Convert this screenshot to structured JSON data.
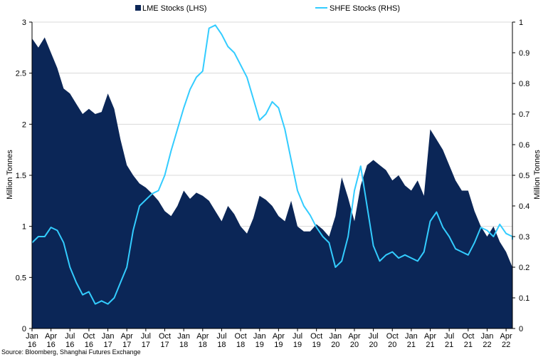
{
  "chart_data": {
    "type": "area",
    "grid": true,
    "legend_position": "top",
    "ylabel_left": "Million Tonnes",
    "ylabel_right": "Million Tonnes",
    "ylim_left": [
      0,
      3
    ],
    "ylim_right": [
      0,
      1
    ],
    "yticks_left": [
      "0",
      "0.5",
      "1",
      "1.5",
      "2",
      "2.5",
      "3"
    ],
    "yticks_right": [
      "0",
      "0.1",
      "0.2",
      "0.3",
      "0.4",
      "0.5",
      "0.6",
      "0.7",
      "0.8",
      "0.9",
      "1"
    ],
    "x_ticks": [
      {
        "month": "Jan",
        "year": "16"
      },
      {
        "month": "Apr",
        "year": "16"
      },
      {
        "month": "Jul",
        "year": "16"
      },
      {
        "month": "Oct",
        "year": "16"
      },
      {
        "month": "Jan",
        "year": "17"
      },
      {
        "month": "Apr",
        "year": "17"
      },
      {
        "month": "Jul",
        "year": "17"
      },
      {
        "month": "Oct",
        "year": "17"
      },
      {
        "month": "Jan",
        "year": "18"
      },
      {
        "month": "Apr",
        "year": "18"
      },
      {
        "month": "Jul",
        "year": "18"
      },
      {
        "month": "Oct",
        "year": "18"
      },
      {
        "month": "Jan",
        "year": "19"
      },
      {
        "month": "Apr",
        "year": "19"
      },
      {
        "month": "Jul",
        "year": "19"
      },
      {
        "month": "Oct",
        "year": "19"
      },
      {
        "month": "Jan",
        "year": "20"
      },
      {
        "month": "Apr",
        "year": "20"
      },
      {
        "month": "Jul",
        "year": "20"
      },
      {
        "month": "Oct",
        "year": "20"
      },
      {
        "month": "Jan",
        "year": "21"
      },
      {
        "month": "Apr",
        "year": "21"
      },
      {
        "month": "Jul",
        "year": "21"
      },
      {
        "month": "Oct",
        "year": "21"
      },
      {
        "month": "Jan",
        "year": "22"
      },
      {
        "month": "Apr",
        "year": "22"
      }
    ],
    "x_range": [
      "2016-01",
      "2022-05"
    ],
    "series": [
      {
        "name": "LME Stocks (LHS)",
        "axis": "left",
        "style": "area",
        "color": "#0b2657",
        "points": [
          [
            "2016-01",
            2.84
          ],
          [
            "2016-02",
            2.75
          ],
          [
            "2016-03",
            2.85
          ],
          [
            "2016-04",
            2.7
          ],
          [
            "2016-05",
            2.55
          ],
          [
            "2016-06",
            2.35
          ],
          [
            "2016-07",
            2.3
          ],
          [
            "2016-08",
            2.2
          ],
          [
            "2016-09",
            2.1
          ],
          [
            "2016-10",
            2.15
          ],
          [
            "2016-11",
            2.1
          ],
          [
            "2016-12",
            2.12
          ],
          [
            "2017-01",
            2.3
          ],
          [
            "2017-02",
            2.15
          ],
          [
            "2017-03",
            1.85
          ],
          [
            "2017-04",
            1.6
          ],
          [
            "2017-05",
            1.5
          ],
          [
            "2017-06",
            1.42
          ],
          [
            "2017-07",
            1.38
          ],
          [
            "2017-08",
            1.32
          ],
          [
            "2017-09",
            1.25
          ],
          [
            "2017-10",
            1.15
          ],
          [
            "2017-11",
            1.1
          ],
          [
            "2017-12",
            1.2
          ],
          [
            "2018-01",
            1.35
          ],
          [
            "2018-02",
            1.27
          ],
          [
            "2018-03",
            1.33
          ],
          [
            "2018-04",
            1.3
          ],
          [
            "2018-05",
            1.25
          ],
          [
            "2018-06",
            1.15
          ],
          [
            "2018-07",
            1.05
          ],
          [
            "2018-08",
            1.2
          ],
          [
            "2018-09",
            1.12
          ],
          [
            "2018-10",
            1.0
          ],
          [
            "2018-11",
            0.93
          ],
          [
            "2018-12",
            1.08
          ],
          [
            "2019-01",
            1.3
          ],
          [
            "2019-02",
            1.26
          ],
          [
            "2019-03",
            1.2
          ],
          [
            "2019-04",
            1.1
          ],
          [
            "2019-05",
            1.05
          ],
          [
            "2019-06",
            1.25
          ],
          [
            "2019-07",
            1.0
          ],
          [
            "2019-08",
            0.95
          ],
          [
            "2019-09",
            0.95
          ],
          [
            "2019-10",
            1.02
          ],
          [
            "2019-11",
            0.97
          ],
          [
            "2019-12",
            0.9
          ],
          [
            "2020-01",
            1.1
          ],
          [
            "2020-02",
            1.48
          ],
          [
            "2020-03",
            1.28
          ],
          [
            "2020-04",
            1.05
          ],
          [
            "2020-05",
            1.4
          ],
          [
            "2020-06",
            1.6
          ],
          [
            "2020-07",
            1.65
          ],
          [
            "2020-08",
            1.6
          ],
          [
            "2020-09",
            1.55
          ],
          [
            "2020-10",
            1.45
          ],
          [
            "2020-11",
            1.5
          ],
          [
            "2020-12",
            1.4
          ],
          [
            "2021-01",
            1.35
          ],
          [
            "2021-02",
            1.45
          ],
          [
            "2021-03",
            1.3
          ],
          [
            "2021-04",
            1.95
          ],
          [
            "2021-05",
            1.85
          ],
          [
            "2021-06",
            1.75
          ],
          [
            "2021-07",
            1.6
          ],
          [
            "2021-08",
            1.45
          ],
          [
            "2021-09",
            1.35
          ],
          [
            "2021-10",
            1.35
          ],
          [
            "2021-11",
            1.15
          ],
          [
            "2021-12",
            1.0
          ],
          [
            "2022-01",
            0.9
          ],
          [
            "2022-02",
            1.0
          ],
          [
            "2022-03",
            0.85
          ],
          [
            "2022-04",
            0.75
          ],
          [
            "2022-05",
            0.6
          ],
          [
            "2022-05",
            0.58
          ]
        ]
      },
      {
        "name": "SHFE Stocks (RHS)",
        "axis": "right",
        "style": "line",
        "color": "#33ccff",
        "points": [
          [
            "2016-01",
            0.28
          ],
          [
            "2016-02",
            0.3
          ],
          [
            "2016-03",
            0.3
          ],
          [
            "2016-04",
            0.33
          ],
          [
            "2016-05",
            0.32
          ],
          [
            "2016-06",
            0.28
          ],
          [
            "2016-07",
            0.2
          ],
          [
            "2016-08",
            0.15
          ],
          [
            "2016-09",
            0.11
          ],
          [
            "2016-10",
            0.12
          ],
          [
            "2016-11",
            0.08
          ],
          [
            "2016-12",
            0.09
          ],
          [
            "2017-01",
            0.08
          ],
          [
            "2017-02",
            0.1
          ],
          [
            "2017-03",
            0.15
          ],
          [
            "2017-04",
            0.2
          ],
          [
            "2017-05",
            0.32
          ],
          [
            "2017-06",
            0.4
          ],
          [
            "2017-07",
            0.42
          ],
          [
            "2017-08",
            0.44
          ],
          [
            "2017-09",
            0.45
          ],
          [
            "2017-10",
            0.5
          ],
          [
            "2017-11",
            0.58
          ],
          [
            "2017-12",
            0.65
          ],
          [
            "2018-01",
            0.72
          ],
          [
            "2018-02",
            0.78
          ],
          [
            "2018-03",
            0.82
          ],
          [
            "2018-04",
            0.84
          ],
          [
            "2018-05",
            0.98
          ],
          [
            "2018-06",
            0.99
          ],
          [
            "2018-07",
            0.96
          ],
          [
            "2018-08",
            0.92
          ],
          [
            "2018-09",
            0.9
          ],
          [
            "2018-10",
            0.86
          ],
          [
            "2018-11",
            0.82
          ],
          [
            "2018-12",
            0.75
          ],
          [
            "2019-01",
            0.68
          ],
          [
            "2019-02",
            0.7
          ],
          [
            "2019-03",
            0.74
          ],
          [
            "2019-04",
            0.72
          ],
          [
            "2019-05",
            0.65
          ],
          [
            "2019-06",
            0.55
          ],
          [
            "2019-07",
            0.45
          ],
          [
            "2019-08",
            0.4
          ],
          [
            "2019-09",
            0.37
          ],
          [
            "2019-10",
            0.33
          ],
          [
            "2019-11",
            0.3
          ],
          [
            "2019-12",
            0.28
          ],
          [
            "2020-01",
            0.2
          ],
          [
            "2020-02",
            0.22
          ],
          [
            "2020-03",
            0.3
          ],
          [
            "2020-04",
            0.45
          ],
          [
            "2020-05",
            0.53
          ],
          [
            "2020-06",
            0.4
          ],
          [
            "2020-07",
            0.27
          ],
          [
            "2020-08",
            0.22
          ],
          [
            "2020-09",
            0.24
          ],
          [
            "2020-10",
            0.25
          ],
          [
            "2020-11",
            0.23
          ],
          [
            "2020-12",
            0.24
          ],
          [
            "2021-01",
            0.23
          ],
          [
            "2021-02",
            0.22
          ],
          [
            "2021-03",
            0.25
          ],
          [
            "2021-04",
            0.35
          ],
          [
            "2021-05",
            0.38
          ],
          [
            "2021-06",
            0.33
          ],
          [
            "2021-07",
            0.3
          ],
          [
            "2021-08",
            0.26
          ],
          [
            "2021-09",
            0.25
          ],
          [
            "2021-10",
            0.24
          ],
          [
            "2021-11",
            0.28
          ],
          [
            "2021-12",
            0.33
          ],
          [
            "2022-01",
            0.32
          ],
          [
            "2022-02",
            0.3
          ],
          [
            "2022-03",
            0.34
          ],
          [
            "2022-04",
            0.31
          ],
          [
            "2022-05",
            0.3
          ],
          [
            "2022-05",
            0.29
          ]
        ]
      }
    ]
  },
  "source_note": "Source: Bloomberg, Shanghai Futures Exchange"
}
